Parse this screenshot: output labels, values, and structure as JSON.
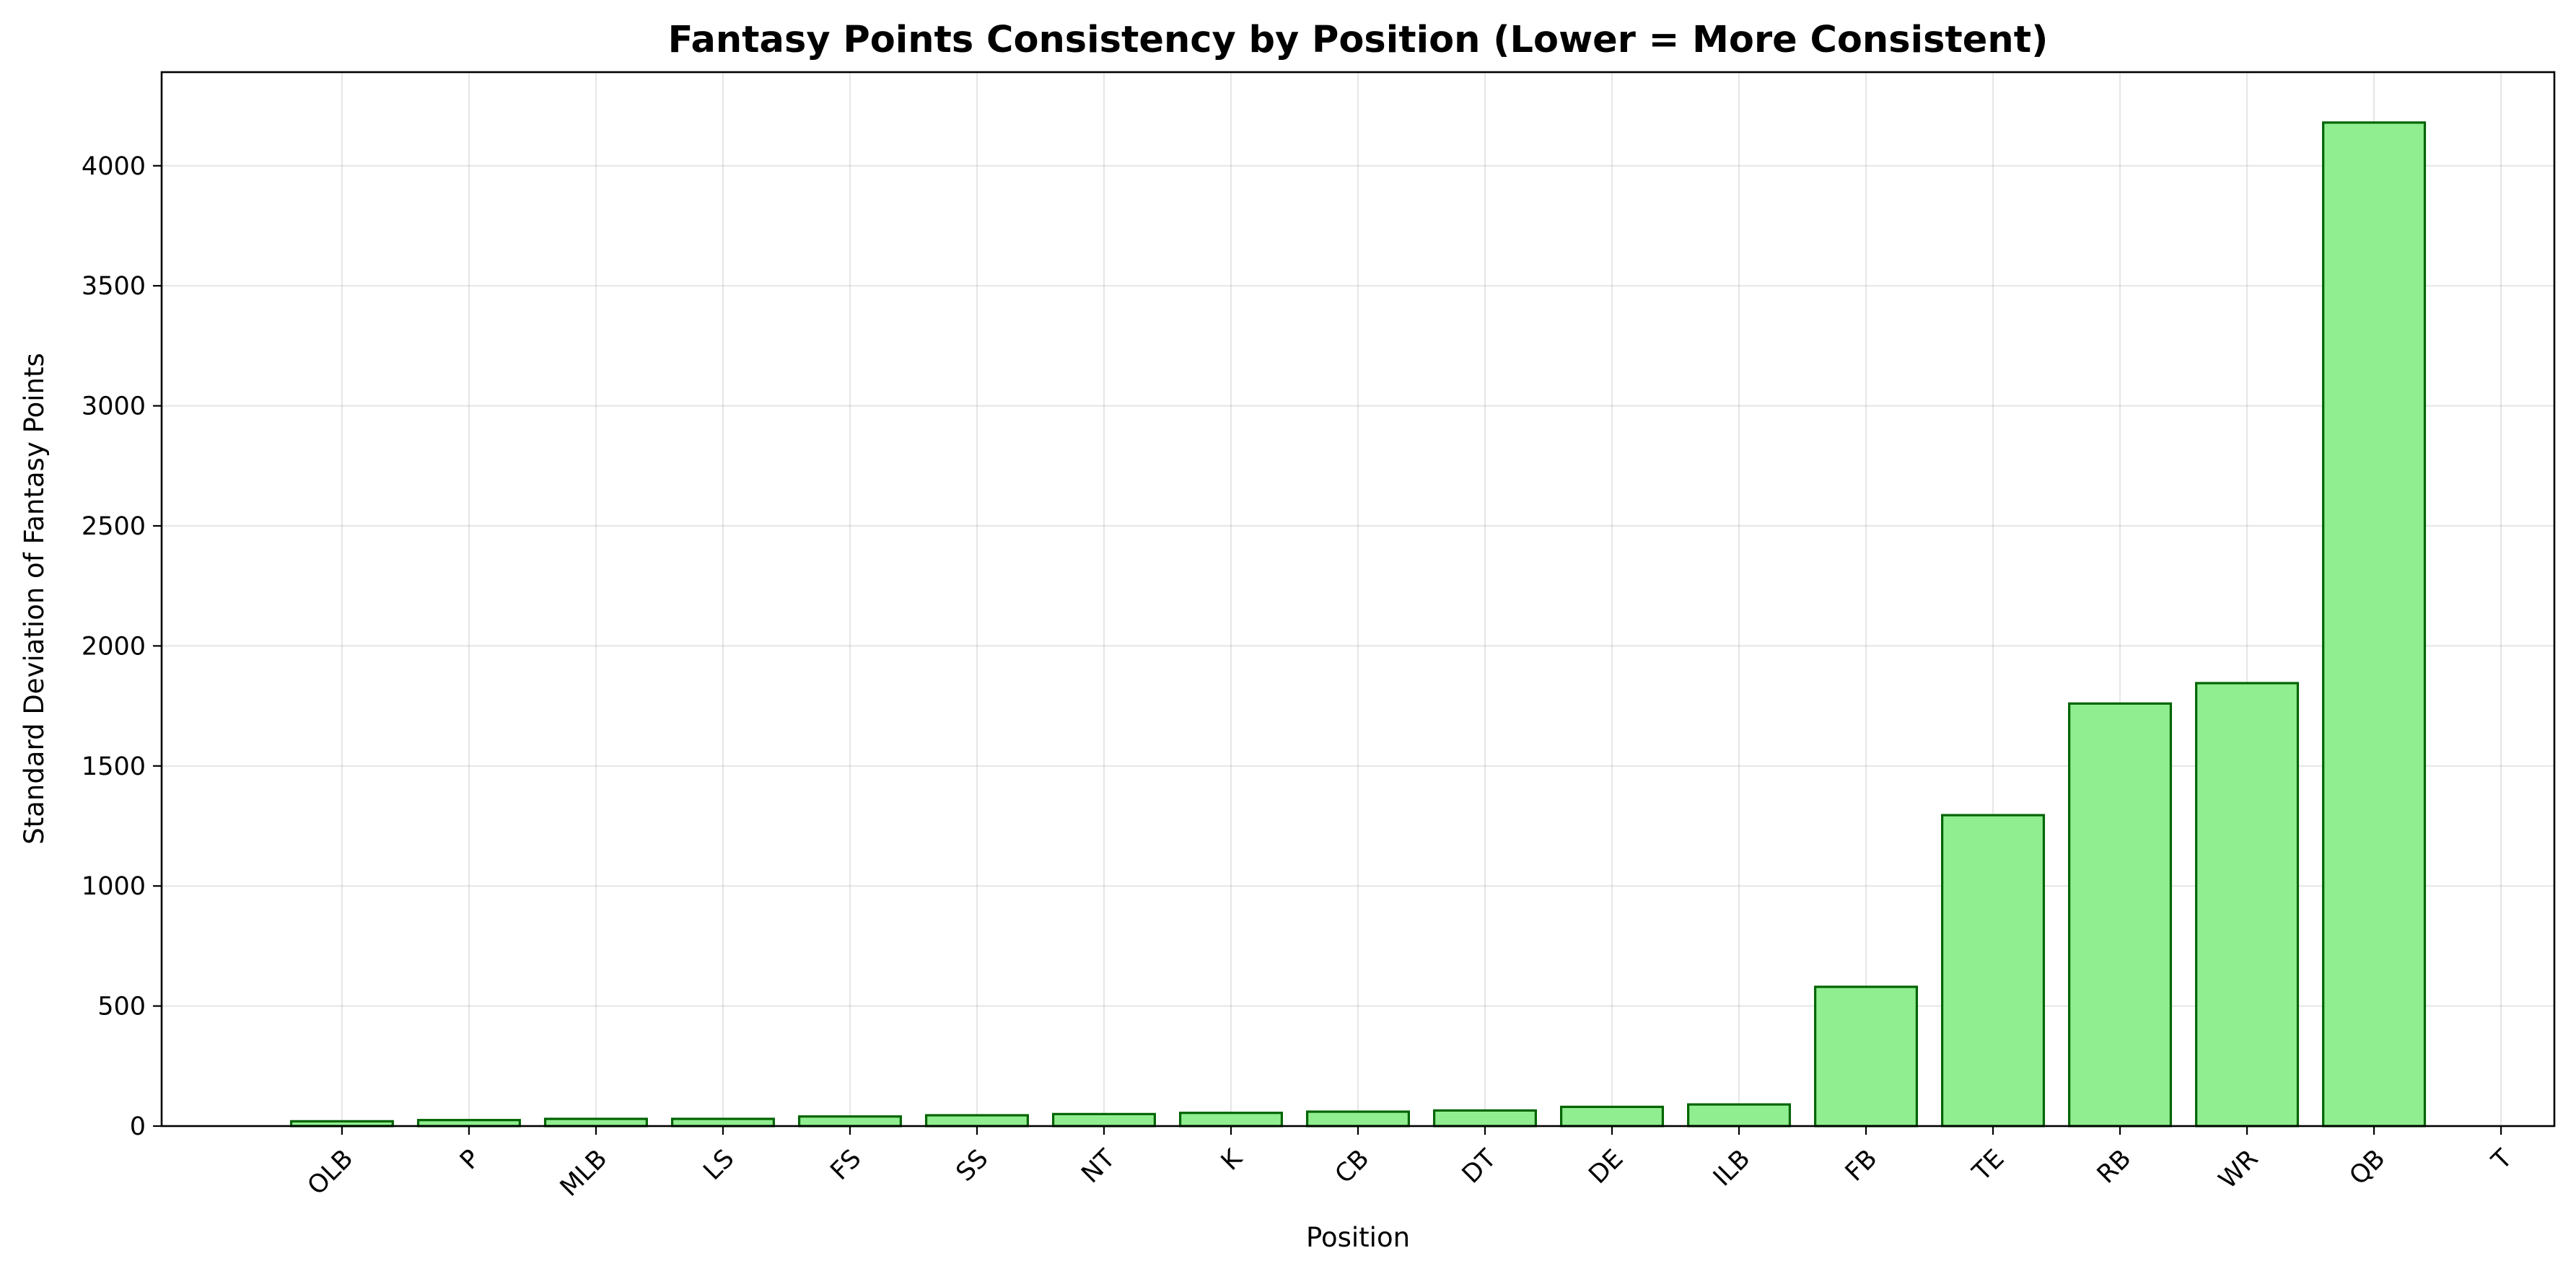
{
  "chart_data": {
    "type": "bar",
    "title": "Fantasy Points Consistency by Position (Lower = More Consistent)",
    "xlabel": "Position",
    "ylabel": "Standard Deviation of Fantasy Points",
    "categories": [
      "OLB",
      "P",
      "MLB",
      "LS",
      "FS",
      "SS",
      "NT",
      "K",
      "CB",
      "DT",
      "DE",
      "ILB",
      "FB",
      "TE",
      "RB",
      "WR",
      "QB",
      "T"
    ],
    "values": [
      20,
      25,
      30,
      30,
      40,
      45,
      50,
      55,
      60,
      65,
      80,
      90,
      580,
      1295,
      1760,
      1845,
      4180,
      0
    ],
    "yticks": [
      0,
      500,
      1000,
      1500,
      2000,
      2500,
      3000,
      3500,
      4000
    ],
    "ylim": [
      0,
      4390
    ],
    "grid": true,
    "bar_color": "#90ee90",
    "bar_edge_color": "#006400"
  }
}
